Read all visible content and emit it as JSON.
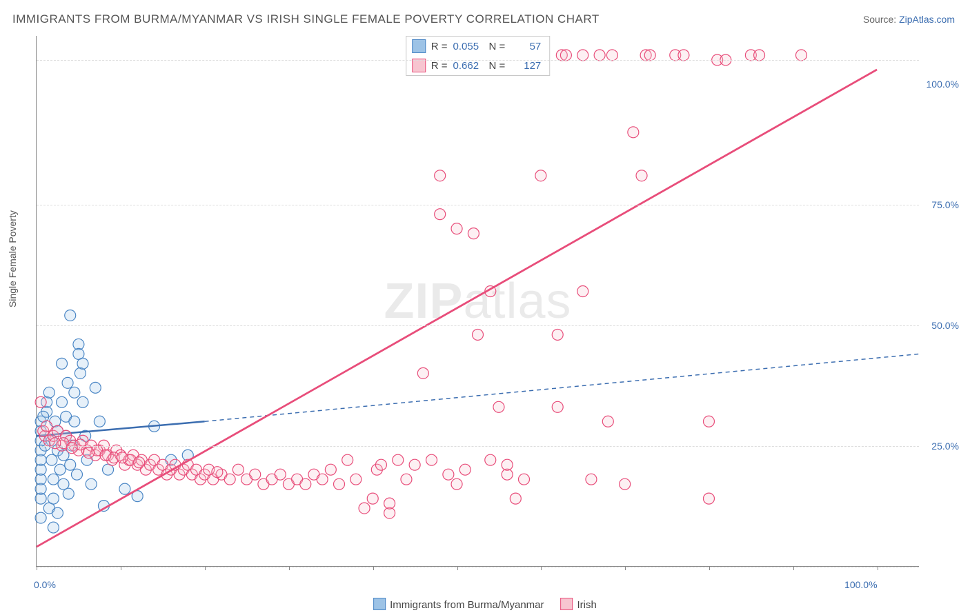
{
  "title": "IMMIGRANTS FROM BURMA/MYANMAR VS IRISH SINGLE FEMALE POVERTY CORRELATION CHART",
  "source_label": "Source: ",
  "source_link_text": "ZipAtlas.com",
  "y_axis_label": "Single Female Poverty",
  "watermark": "ZIPatlas",
  "chart": {
    "type": "scatter-with-regression",
    "xlim": [
      0,
      105
    ],
    "ylim": [
      0,
      110
    ],
    "x_ticks_minor_step": 10,
    "x_tick_labels": [
      {
        "pos": 0,
        "label": "0.0%"
      },
      {
        "pos": 100,
        "label": "100.0%"
      }
    ],
    "y_gridlines": [
      0,
      25,
      50,
      75,
      105
    ],
    "y_tick_labels": [
      {
        "pos": 25,
        "label": "25.0%"
      },
      {
        "pos": 50,
        "label": "50.0%"
      },
      {
        "pos": 75,
        "label": "75.0%"
      },
      {
        "pos": 100,
        "label": "100.0%"
      }
    ],
    "background_color": "#ffffff",
    "grid_color": "#dddddd",
    "axis_color": "#888888",
    "marker_radius": 8,
    "series": [
      {
        "name": "Immigrants from Burma/Myanmar",
        "fill": "#9dc3e6",
        "stroke": "#4a86c5",
        "stats": {
          "R": "0.055",
          "N": "57"
        },
        "regression": {
          "color": "#3b6db0",
          "solid_from_x": 0,
          "solid_to_x": 20,
          "dashed_to_x": 105,
          "y0": 27,
          "y1_solid": 30,
          "y1_dashed": 44,
          "width": 2.5
        },
        "points": [
          [
            0.5,
            10
          ],
          [
            0.5,
            14
          ],
          [
            0.5,
            16
          ],
          [
            0.5,
            18
          ],
          [
            0.5,
            20
          ],
          [
            0.5,
            22
          ],
          [
            0.5,
            24
          ],
          [
            0.5,
            26
          ],
          [
            0.5,
            28
          ],
          [
            0.5,
            30
          ],
          [
            1.2,
            32
          ],
          [
            1.2,
            34
          ],
          [
            1.5,
            36
          ],
          [
            1.5,
            12
          ],
          [
            1.8,
            22
          ],
          [
            1.8,
            26
          ],
          [
            2.0,
            8
          ],
          [
            2.0,
            14
          ],
          [
            2.0,
            18
          ],
          [
            2.2,
            30
          ],
          [
            2.5,
            24
          ],
          [
            2.5,
            28
          ],
          [
            2.8,
            20
          ],
          [
            3.0,
            34
          ],
          [
            3.0,
            42
          ],
          [
            3.2,
            17
          ],
          [
            3.2,
            23
          ],
          [
            3.5,
            27
          ],
          [
            3.5,
            31
          ],
          [
            3.8,
            15
          ],
          [
            4.0,
            52
          ],
          [
            4.0,
            21
          ],
          [
            4.2,
            25
          ],
          [
            4.5,
            30
          ],
          [
            4.5,
            36
          ],
          [
            4.8,
            19
          ],
          [
            5.0,
            46
          ],
          [
            5.0,
            44
          ],
          [
            5.2,
            40
          ],
          [
            5.5,
            42
          ],
          [
            5.5,
            34
          ],
          [
            5.8,
            27
          ],
          [
            6.0,
            22
          ],
          [
            6.5,
            17
          ],
          [
            7.0,
            37
          ],
          [
            7.5,
            30
          ],
          [
            8.0,
            12.5
          ],
          [
            8.5,
            20
          ],
          [
            10.5,
            16
          ],
          [
            12,
            14.5
          ],
          [
            14,
            29
          ],
          [
            16,
            22
          ],
          [
            18,
            23
          ],
          [
            1,
            25
          ],
          [
            2.5,
            11
          ],
          [
            3.7,
            38
          ],
          [
            0.8,
            31
          ]
        ]
      },
      {
        "name": "Irish",
        "fill": "#f7c5d0",
        "stroke": "#e84d7a",
        "stats": {
          "R": "0.662",
          "N": "127"
        },
        "regression": {
          "color": "#e84d7a",
          "solid_from_x": 0,
          "solid_to_x": 100,
          "y0": 4,
          "y1_solid": 103,
          "width": 2.8
        },
        "points": [
          [
            0.5,
            34
          ],
          [
            1,
            27
          ],
          [
            1.5,
            26
          ],
          [
            2,
            27
          ],
          [
            2.5,
            28
          ],
          [
            3,
            25
          ],
          [
            3.5,
            27
          ],
          [
            4,
            26
          ],
          [
            4.5,
            25
          ],
          [
            5,
            24
          ],
          [
            5.5,
            26
          ],
          [
            6,
            24
          ],
          [
            6.5,
            25
          ],
          [
            7,
            23
          ],
          [
            7.5,
            24
          ],
          [
            8,
            25
          ],
          [
            8.5,
            23
          ],
          [
            9,
            22
          ],
          [
            9.5,
            24
          ],
          [
            10,
            23
          ],
          [
            10.5,
            21
          ],
          [
            11,
            22
          ],
          [
            11.5,
            23
          ],
          [
            12,
            21
          ],
          [
            12.5,
            22
          ],
          [
            13,
            20
          ],
          [
            13.5,
            21
          ],
          [
            14,
            22
          ],
          [
            14.5,
            20
          ],
          [
            15,
            21
          ],
          [
            15.5,
            19
          ],
          [
            16,
            20
          ],
          [
            16.5,
            21
          ],
          [
            17,
            19
          ],
          [
            17.5,
            20
          ],
          [
            18,
            21
          ],
          [
            18.5,
            19
          ],
          [
            19,
            20
          ],
          [
            19.5,
            18
          ],
          [
            20,
            19
          ],
          [
            20.5,
            20
          ],
          [
            21,
            18
          ],
          [
            22,
            19
          ],
          [
            23,
            18
          ],
          [
            24,
            20
          ],
          [
            25,
            18
          ],
          [
            26,
            19
          ],
          [
            27,
            17
          ],
          [
            28,
            18
          ],
          [
            29,
            19
          ],
          [
            30,
            17
          ],
          [
            31,
            18
          ],
          [
            32,
            17
          ],
          [
            33,
            19
          ],
          [
            34,
            18
          ],
          [
            35,
            20
          ],
          [
            36,
            17
          ],
          [
            37,
            22
          ],
          [
            38,
            18
          ],
          [
            39,
            12
          ],
          [
            40,
            14
          ],
          [
            40.5,
            20
          ],
          [
            41,
            21
          ],
          [
            42,
            11
          ],
          [
            42,
            13
          ],
          [
            43,
            22
          ],
          [
            44,
            18
          ],
          [
            45,
            21
          ],
          [
            46,
            40
          ],
          [
            47,
            22
          ],
          [
            48,
            73
          ],
          [
            48,
            81
          ],
          [
            49,
            19
          ],
          [
            50,
            70
          ],
          [
            50,
            17
          ],
          [
            51,
            20
          ],
          [
            52,
            69
          ],
          [
            52.5,
            48
          ],
          [
            53,
            105
          ],
          [
            54,
            22
          ],
          [
            54,
            57
          ],
          [
            55,
            106
          ],
          [
            55,
            33
          ],
          [
            56,
            19
          ],
          [
            56,
            21
          ],
          [
            57,
            14
          ],
          [
            58,
            18
          ],
          [
            58,
            106
          ],
          [
            60,
            81
          ],
          [
            62,
            33
          ],
          [
            62,
            48
          ],
          [
            62.5,
            106
          ],
          [
            63,
            106
          ],
          [
            65,
            57
          ],
          [
            65,
            106
          ],
          [
            66,
            18
          ],
          [
            67,
            106
          ],
          [
            68,
            30
          ],
          [
            68.5,
            106
          ],
          [
            70,
            17
          ],
          [
            71,
            90
          ],
          [
            72,
            81
          ],
          [
            72.5,
            106
          ],
          [
            73,
            106
          ],
          [
            76,
            106
          ],
          [
            77,
            106
          ],
          [
            80,
            30
          ],
          [
            80,
            14
          ],
          [
            81,
            105
          ],
          [
            82,
            105
          ],
          [
            85,
            106
          ],
          [
            86,
            106
          ],
          [
            91,
            106
          ],
          [
            0.8,
            28
          ],
          [
            1.2,
            29
          ],
          [
            3.2,
            25.5
          ],
          [
            5.2,
            25.2
          ],
          [
            7.2,
            24
          ],
          [
            9.2,
            22.5
          ],
          [
            11.2,
            22
          ],
          [
            2.2,
            25.5
          ],
          [
            4.2,
            24.5
          ],
          [
            6.2,
            23.5
          ],
          [
            8.2,
            23
          ],
          [
            10.2,
            22.5
          ],
          [
            12.2,
            21.5
          ],
          [
            21.5,
            19.5
          ]
        ]
      }
    ]
  },
  "legend_bottom": [
    {
      "label": "Immigrants from Burma/Myanmar",
      "fill": "#9dc3e6",
      "stroke": "#4a86c5"
    },
    {
      "label": "Irish",
      "fill": "#f7c5d0",
      "stroke": "#e84d7a"
    }
  ]
}
